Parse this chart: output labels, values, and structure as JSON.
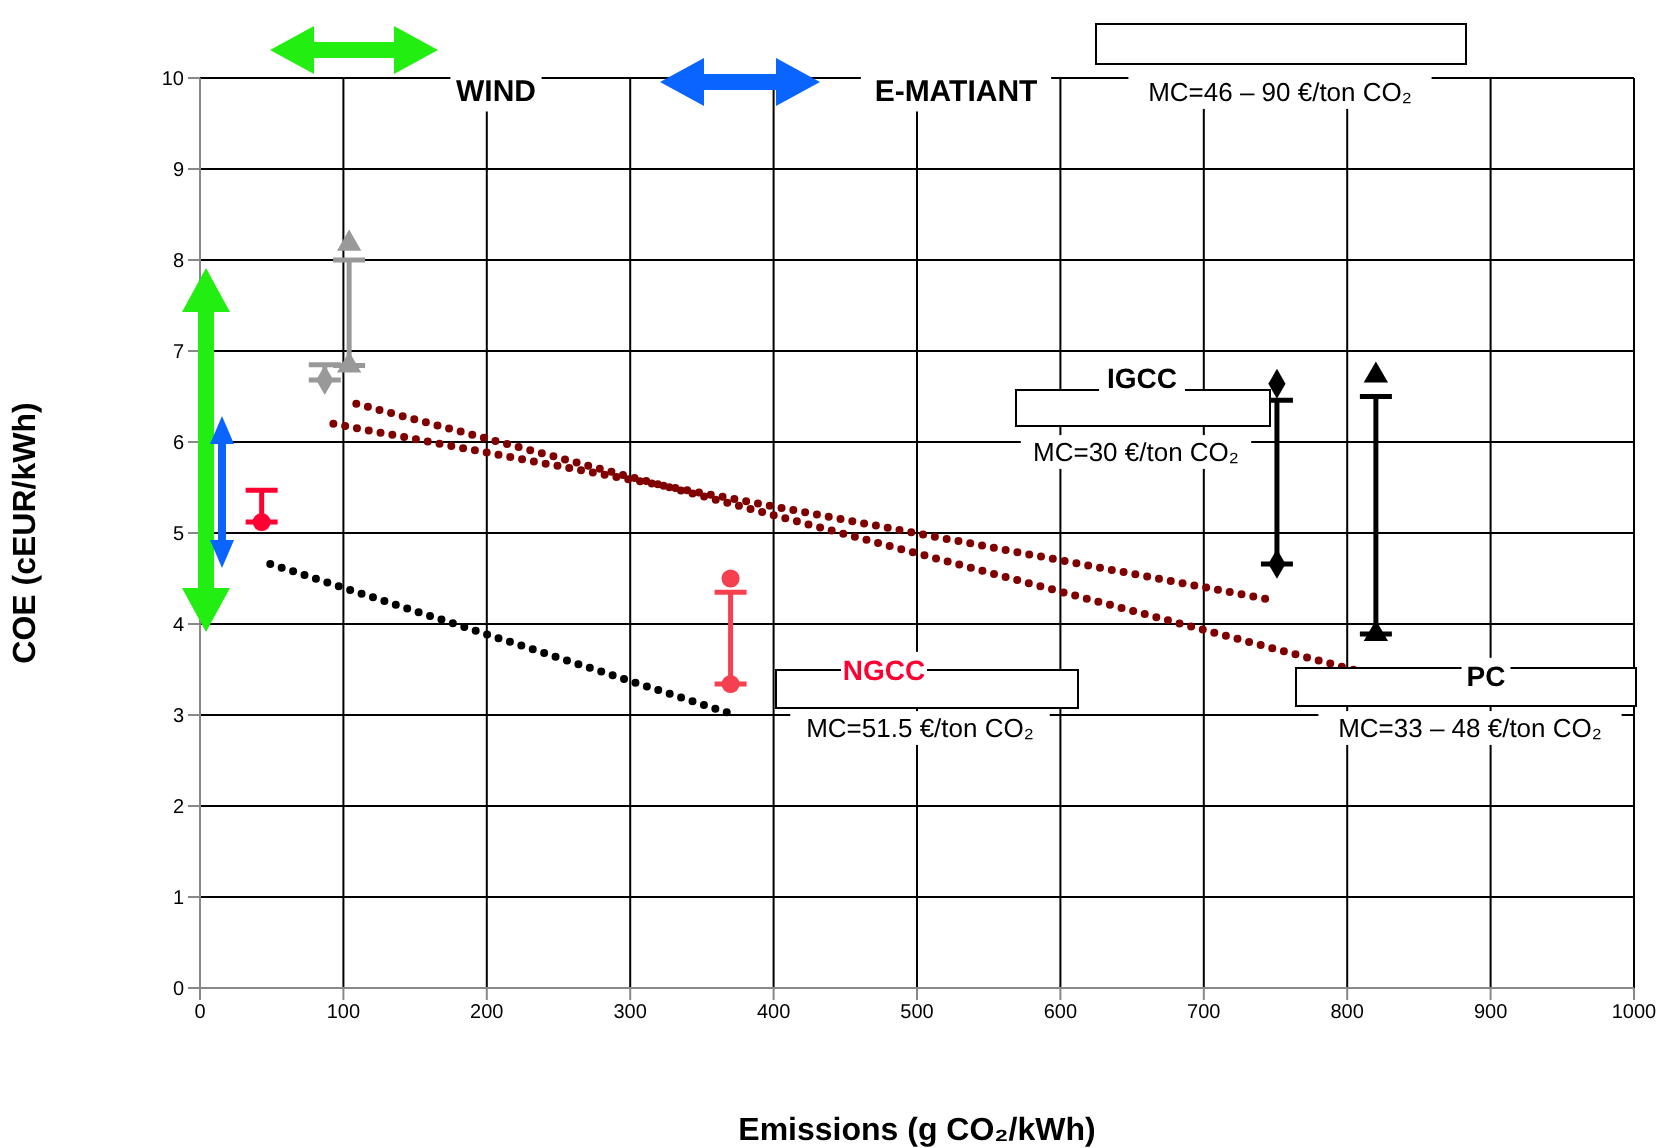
{
  "chart_data": {
    "type": "scatter",
    "xlabel": "Emissions (g CO₂/kWh)",
    "ylabel": "COE (cEUR/kWh)",
    "xlim": [
      0,
      1000
    ],
    "xticks": [
      0,
      100,
      200,
      300,
      400,
      500,
      600,
      700,
      800,
      900,
      1000
    ],
    "ylim": [
      0,
      10
    ],
    "yticks": [
      0,
      1,
      2,
      3,
      4,
      5,
      6,
      7,
      8,
      9,
      10
    ],
    "grid": true,
    "legend": false,
    "series": [
      {
        "color": "#ff0033",
        "marker": "circle",
        "x": [
          43
        ],
        "values": [
          5.12
        ],
        "errors": [
          [
            5.12,
            5.47
          ]
        ]
      },
      {
        "color": "#f5404f",
        "marker": "circle",
        "x": [
          370,
          370
        ],
        "values": [
          3.34,
          4.5
        ],
        "errors": [
          [
            3.34,
            4.35
          ],
          null
        ]
      },
      {
        "color": "#000000",
        "marker": "diamond",
        "x": [
          751,
          751
        ],
        "values": [
          4.66,
          6.64
        ],
        "errors": [
          [
            4.66,
            6.46
          ],
          null
        ]
      },
      {
        "color": "#000000",
        "marker": "triangle",
        "x": [
          820,
          820
        ],
        "values": [
          3.89,
          6.73
        ],
        "errors": [
          [
            3.89,
            6.5
          ],
          null
        ]
      },
      {
        "color": "#999999",
        "marker": "triangle",
        "x": [
          104,
          104
        ],
        "values": [
          6.84,
          8.18
        ],
        "errors": [
          [
            6.84,
            8.0
          ],
          null
        ]
      },
      {
        "color": "#999999",
        "marker": "diamond",
        "x": [
          87
        ],
        "values": [
          6.68
        ],
        "errors": [
          [
            6.68,
            6.85
          ]
        ]
      },
      {
        "type": "line",
        "color": "#000000",
        "marker": "none",
        "line_style": "dotted",
        "x": [
          49,
          371
        ],
        "values": [
          4.66,
          3.01
        ]
      },
      {
        "type": "line",
        "color": "#800000",
        "marker": "none",
        "line_style": "dotted",
        "x": [
          93,
          749
        ],
        "values": [
          6.2,
          4.26
        ]
      },
      {
        "type": "line",
        "color": "#800000",
        "marker": "none",
        "line_style": "dotted",
        "x": [
          109,
          806
        ],
        "values": [
          6.42,
          3.49
        ]
      }
    ],
    "annotations": [
      "WIND",
      "E-MATIANT",
      "MC=46 – 90 €/ton CO₂",
      "IGCC",
      "MC=30 €/ton CO₂",
      "NGCC",
      "MC=51.5 €/ton CO₂",
      "PC",
      "MC=33 – 48 €/ton CO₂"
    ]
  }
}
